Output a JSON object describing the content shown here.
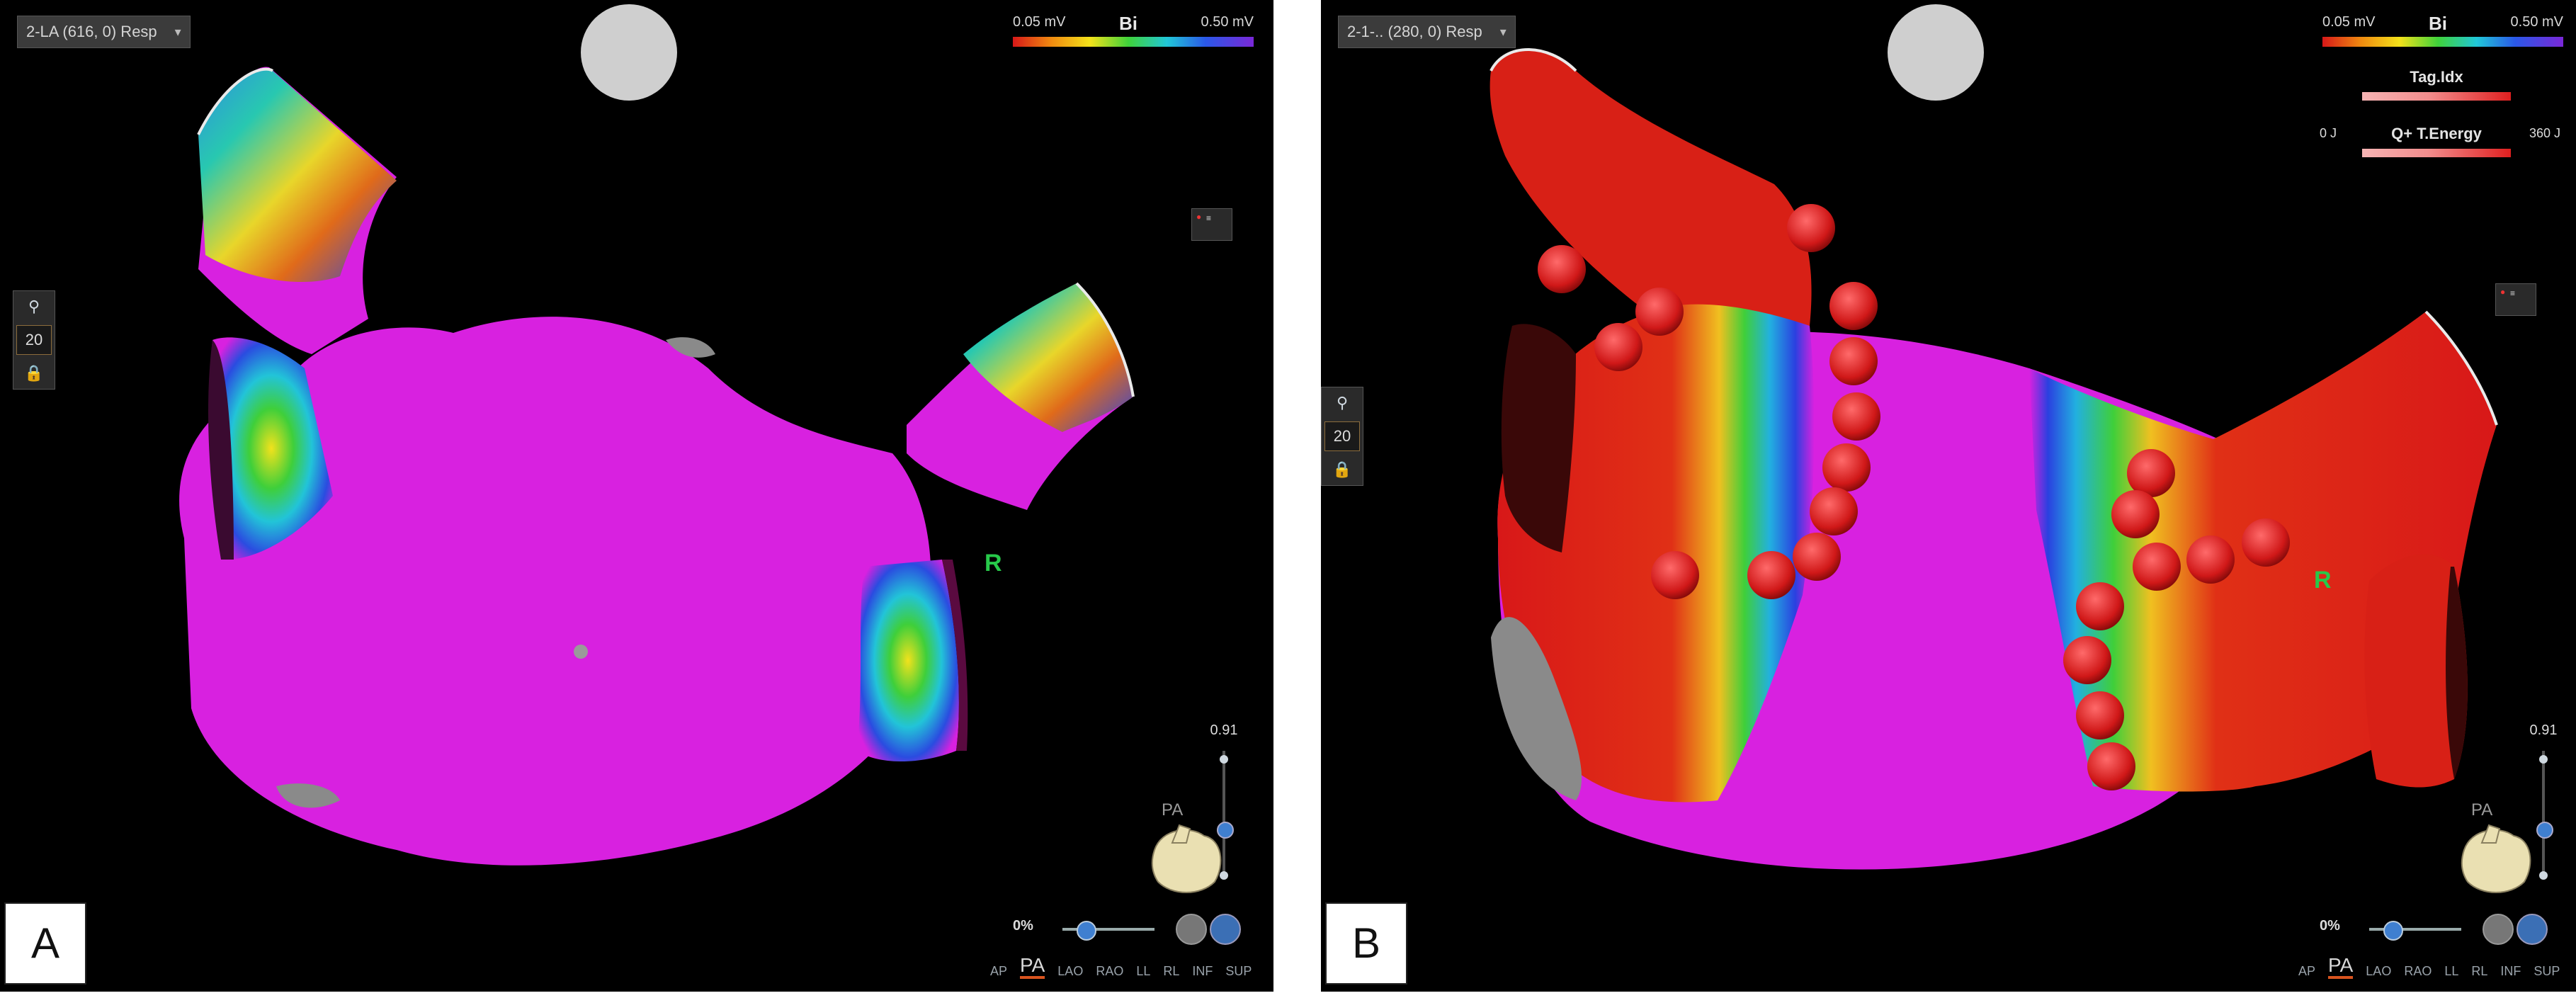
{
  "panels": [
    {
      "id": "A",
      "map_name": "2-LA (616, 0) Resp",
      "scale": {
        "min": "0.05 mV",
        "mode": "Bi",
        "max": "0.50 mV"
      },
      "side_value": "20",
      "orientation_marker": "R",
      "zoom": "0.91",
      "timeline_pct": "0%",
      "orientation_figure": "PA",
      "views": [
        "AP",
        "PA",
        "LAO",
        "RAO",
        "LL",
        "RL",
        "INF",
        "SUP"
      ],
      "active_view": "PA",
      "label": "A"
    },
    {
      "id": "B",
      "map_name": "2-1-.. (280, 0) Resp",
      "scale": {
        "min": "0.05 mV",
        "mode": "Bi",
        "max": "0.50 mV"
      },
      "overlays": [
        {
          "title": "Tag.Idx",
          "lo": "",
          "hi": ""
        },
        {
          "title": "Q+ T.Energy",
          "lo": "0 J",
          "hi": "360 J"
        }
      ],
      "side_value": "20",
      "orientation_marker": "R",
      "zoom": "0.91",
      "timeline_pct": "0%",
      "orientation_figure": "PA",
      "views": [
        "AP",
        "PA",
        "LAO",
        "RAO",
        "LL",
        "RL",
        "INF",
        "SUP"
      ],
      "active_view": "PA",
      "label": "B"
    }
  ],
  "colors": {
    "normal_voltage": "#d821e0",
    "scar": "#d81818",
    "ablation_lesion": "#d02020",
    "orientation_marker": "#27c94a",
    "active_view_underline": "#d9541e"
  },
  "icons": [
    "dropdown-caret-icon",
    "filter-icon",
    "heart-icon",
    "lock-icon",
    "expand-icon",
    "settings-icon",
    "compass-icon"
  ]
}
